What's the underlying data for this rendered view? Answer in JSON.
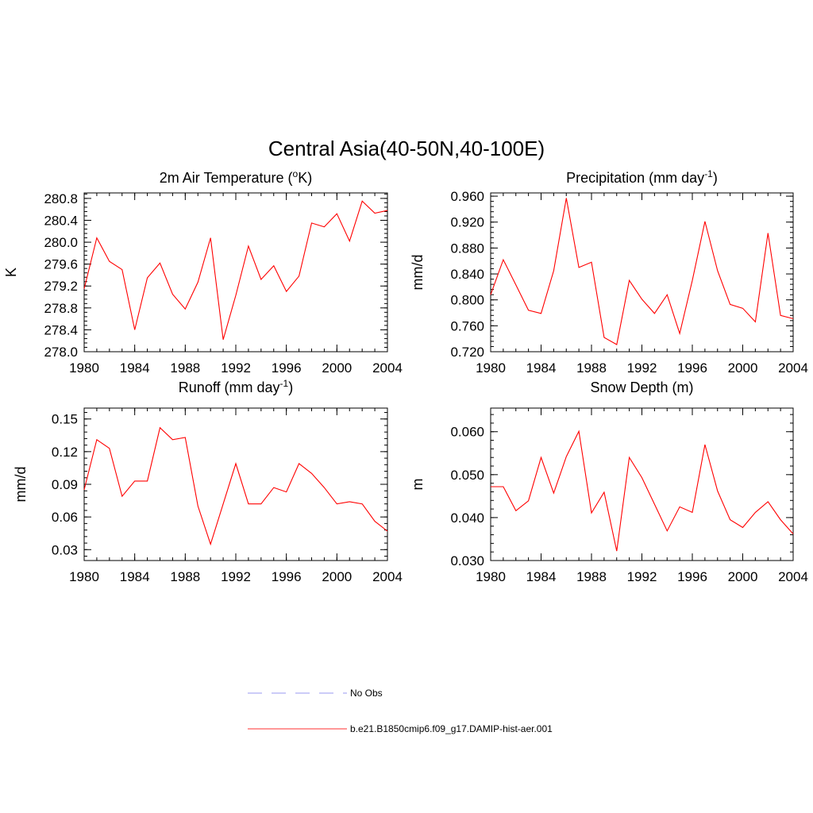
{
  "figure": {
    "title": "Central Asia(40-50N,40-100E)"
  },
  "legend": {
    "entries": [
      {
        "label": "No Obs",
        "color": "#9a9af0",
        "dash": true
      },
      {
        "label": "b.e21.B1850cmip6.f09_g17.DAMIP-hist-aer.001",
        "color": "#ff3030",
        "dash": false
      }
    ]
  },
  "chart_data": [
    {
      "type": "line",
      "title": "2m Air Temperature (",
      "title_sup": "o",
      "title_tail": "K)",
      "ylabel": "K",
      "xlim": [
        1980,
        2004
      ],
      "ylim": [
        278.0,
        280.9
      ],
      "xticks": [
        1980,
        1984,
        1988,
        1992,
        1996,
        2000,
        2004
      ],
      "xtick_labels": [
        "1980",
        "1984",
        "1988",
        "1992",
        "1996",
        "2000",
        "2004"
      ],
      "yticks": [
        278.0,
        278.4,
        278.8,
        279.2,
        279.6,
        280.0,
        280.4,
        280.8
      ],
      "ytick_labels": [
        "278.0",
        "278.4",
        "278.8",
        "279.2",
        "279.6",
        "280.0",
        "280.4",
        "280.8"
      ],
      "series": [
        {
          "color": "#ff0000",
          "x": [
            1980,
            1981,
            1982,
            1983,
            1984,
            1985,
            1986,
            1987,
            1988,
            1989,
            1990,
            1991,
            1992,
            1993,
            1994,
            1995,
            1996,
            1997,
            1998,
            1999,
            2000,
            2001,
            2002,
            2003,
            2004
          ],
          "values": [
            279.15,
            280.08,
            279.65,
            279.5,
            278.4,
            279.35,
            279.62,
            279.05,
            278.78,
            279.27,
            280.08,
            278.22,
            279.03,
            279.93,
            279.32,
            279.57,
            279.1,
            279.38,
            280.35,
            280.28,
            280.52,
            280.02,
            280.75,
            280.53,
            280.58
          ]
        }
      ]
    },
    {
      "type": "line",
      "title": "Precipitation (mm day",
      "title_sup": "-1",
      "title_tail": ")",
      "ylabel": "mm/d",
      "xlim": [
        1980,
        2004
      ],
      "ylim": [
        0.72,
        0.965
      ],
      "xticks": [
        1980,
        1984,
        1988,
        1992,
        1996,
        2000,
        2004
      ],
      "xtick_labels": [
        "1980",
        "1984",
        "1988",
        "1992",
        "1996",
        "2000",
        "2004"
      ],
      "yticks": [
        0.72,
        0.76,
        0.8,
        0.84,
        0.88,
        0.92,
        0.96
      ],
      "ytick_labels": [
        "0.720",
        "0.760",
        "0.800",
        "0.840",
        "0.880",
        "0.920",
        "0.960"
      ],
      "series": [
        {
          "color": "#ff0000",
          "x": [
            1980,
            1981,
            1982,
            1983,
            1984,
            1985,
            1986,
            1987,
            1988,
            1989,
            1990,
            1991,
            1992,
            1993,
            1994,
            1995,
            1996,
            1997,
            1998,
            1999,
            2000,
            2001,
            2002,
            2003,
            2004
          ],
          "values": [
            0.808,
            0.862,
            0.823,
            0.784,
            0.779,
            0.845,
            0.957,
            0.85,
            0.858,
            0.742,
            0.731,
            0.83,
            0.801,
            0.779,
            0.808,
            0.748,
            0.83,
            0.921,
            0.845,
            0.793,
            0.787,
            0.766,
            0.903,
            0.776,
            0.771
          ]
        }
      ]
    },
    {
      "type": "line",
      "title": "Runoff (mm day",
      "title_sup": "-1",
      "title_tail": ")",
      "ylabel": "mm/d",
      "xlim": [
        1980,
        2004
      ],
      "ylim": [
        0.02,
        0.16
      ],
      "xticks": [
        1980,
        1984,
        1988,
        1992,
        1996,
        2000,
        2004
      ],
      "xtick_labels": [
        "1980",
        "1984",
        "1988",
        "1992",
        "1996",
        "2000",
        "2004"
      ],
      "yticks": [
        0.03,
        0.06,
        0.09,
        0.12,
        0.15
      ],
      "ytick_labels": [
        "0.03",
        "0.06",
        "0.09",
        "0.12",
        "0.15"
      ],
      "series": [
        {
          "color": "#ff0000",
          "x": [
            1980,
            1981,
            1982,
            1983,
            1984,
            1985,
            1986,
            1987,
            1988,
            1989,
            1990,
            1991,
            1992,
            1993,
            1994,
            1995,
            1996,
            1997,
            1998,
            1999,
            2000,
            2001,
            2002,
            2003,
            2004
          ],
          "values": [
            0.085,
            0.131,
            0.123,
            0.079,
            0.093,
            0.093,
            0.142,
            0.131,
            0.133,
            0.07,
            0.035,
            0.072,
            0.109,
            0.072,
            0.072,
            0.087,
            0.083,
            0.109,
            0.1,
            0.087,
            0.072,
            0.074,
            0.072,
            0.056,
            0.047
          ]
        }
      ]
    },
    {
      "type": "line",
      "title": "Snow Depth (m)",
      "title_sup": "",
      "title_tail": "",
      "ylabel": "m",
      "xlim": [
        1980,
        2004
      ],
      "ylim": [
        0.03,
        0.0655
      ],
      "xticks": [
        1980,
        1984,
        1988,
        1992,
        1996,
        2000,
        2004
      ],
      "xtick_labels": [
        "1980",
        "1984",
        "1988",
        "1992",
        "1996",
        "2000",
        "2004"
      ],
      "yticks": [
        0.03,
        0.04,
        0.05,
        0.06
      ],
      "ytick_labels": [
        "0.030",
        "0.040",
        "0.050",
        "0.060"
      ],
      "series": [
        {
          "color": "#ff0000",
          "x": [
            1980,
            1981,
            1982,
            1983,
            1984,
            1985,
            1986,
            1987,
            1988,
            1989,
            1990,
            1991,
            1992,
            1993,
            1994,
            1995,
            1996,
            1997,
            1998,
            1999,
            2000,
            2001,
            2002,
            2003,
            2004
          ],
          "values": [
            0.0472,
            0.0472,
            0.0416,
            0.0439,
            0.054,
            0.0457,
            0.0542,
            0.0601,
            0.0411,
            0.0459,
            0.0322,
            0.054,
            0.0493,
            0.0431,
            0.0369,
            0.0425,
            0.0412,
            0.057,
            0.0462,
            0.0395,
            0.0377,
            0.0412,
            0.0437,
            0.0395,
            0.0362
          ]
        }
      ]
    }
  ]
}
